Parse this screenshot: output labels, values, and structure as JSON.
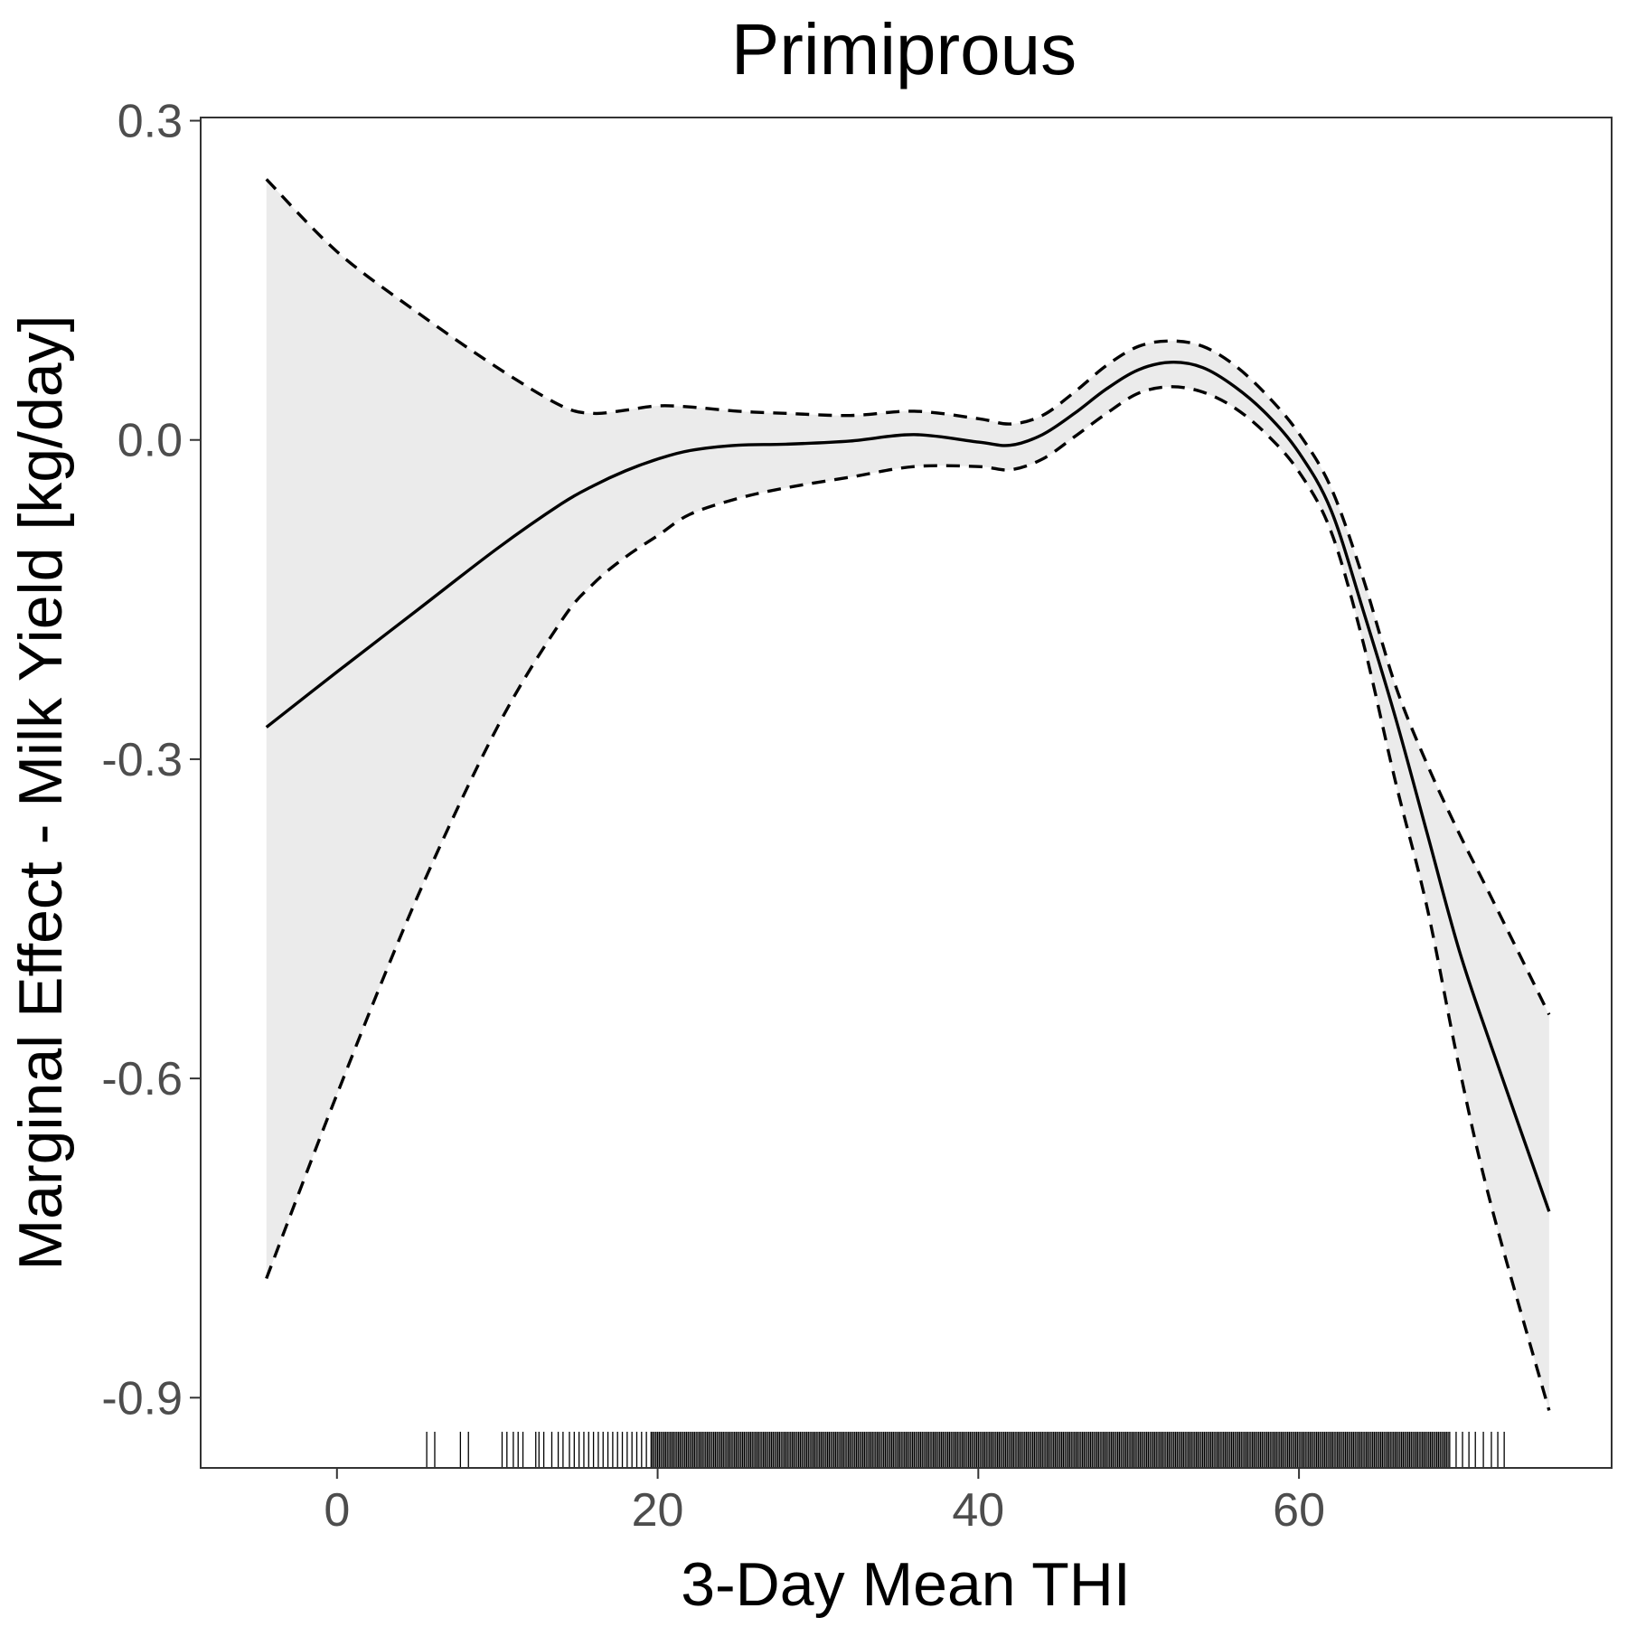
{
  "chart_data": {
    "type": "line",
    "title": "Primiprous",
    "xlabel": "3-Day Mean THI",
    "ylabel": "Marginal Effect - Milk Yield [kg/day]",
    "xlim": [
      -8.5,
      79.5
    ],
    "ylim": [
      -0.966,
      0.303
    ],
    "x_ticks": [
      0,
      20,
      40,
      60
    ],
    "y_ticks": [
      0.3,
      0.0,
      -0.3,
      -0.6,
      -0.9
    ],
    "x_tick_labels": [
      "0",
      "20",
      "40",
      "60"
    ],
    "y_tick_labels": [
      "0.3",
      "0.0",
      "-0.3",
      "-0.6",
      "-0.9"
    ],
    "grid": false,
    "legend": "none",
    "x": [
      -4.4,
      0,
      5,
      10,
      14,
      16,
      18,
      20,
      22,
      25,
      28,
      32,
      36,
      40,
      42,
      44,
      46,
      48,
      50,
      52,
      54,
      56,
      58,
      60,
      62,
      64,
      66,
      68,
      70,
      72,
      75.6
    ],
    "series": [
      {
        "role": "estimate",
        "values": [
          -0.27,
          -0.218,
          -0.16,
          -0.102,
          -0.06,
          -0.043,
          -0.029,
          -0.018,
          -0.01,
          -0.005,
          -0.004,
          -0.001,
          0.005,
          -0.002,
          -0.005,
          0.005,
          0.025,
          0.048,
          0.066,
          0.073,
          0.068,
          0.05,
          0.024,
          -0.012,
          -0.066,
          -0.16,
          -0.26,
          -0.37,
          -0.48,
          -0.57,
          -0.725
        ]
      },
      {
        "role": "upper",
        "values": [
          0.245,
          0.177,
          0.12,
          0.068,
          0.032,
          0.025,
          0.028,
          0.032,
          0.031,
          0.027,
          0.025,
          0.023,
          0.027,
          0.02,
          0.015,
          0.023,
          0.045,
          0.07,
          0.088,
          0.093,
          0.088,
          0.07,
          0.042,
          0.006,
          -0.045,
          -0.13,
          -0.23,
          -0.305,
          -0.37,
          -0.43,
          -0.54
        ]
      },
      {
        "role": "lower",
        "values": [
          -0.788,
          -0.615,
          -0.43,
          -0.27,
          -0.17,
          -0.135,
          -0.11,
          -0.09,
          -0.07,
          -0.055,
          -0.045,
          -0.035,
          -0.025,
          -0.025,
          -0.028,
          -0.018,
          0.003,
          0.025,
          0.044,
          0.05,
          0.045,
          0.03,
          0.005,
          -0.03,
          -0.086,
          -0.19,
          -0.32,
          -0.44,
          -0.59,
          -0.72,
          -0.912
        ]
      }
    ],
    "rug": {
      "min": 5.6,
      "max": 72.8,
      "sparse_x": [
        5.6,
        6.1,
        7.7,
        8.2,
        10.3,
        10.6,
        11.0,
        11.3,
        11.6,
        12.4,
        12.6,
        12.9,
        13.4,
        13.8,
        14.1,
        14.5,
        14.8,
        15.1,
        15.4,
        15.7,
        16.0,
        16.3,
        16.6,
        16.9,
        17.2,
        17.5,
        17.8,
        18.1,
        18.4,
        18.7,
        19.0,
        19.3,
        19.6
      ],
      "dense_from": 19.6,
      "dense_to": 69.5,
      "sparse_right": [
        69.8,
        70.2,
        70.6,
        71.0,
        71.5,
        72.0,
        72.4,
        72.8
      ]
    }
  }
}
